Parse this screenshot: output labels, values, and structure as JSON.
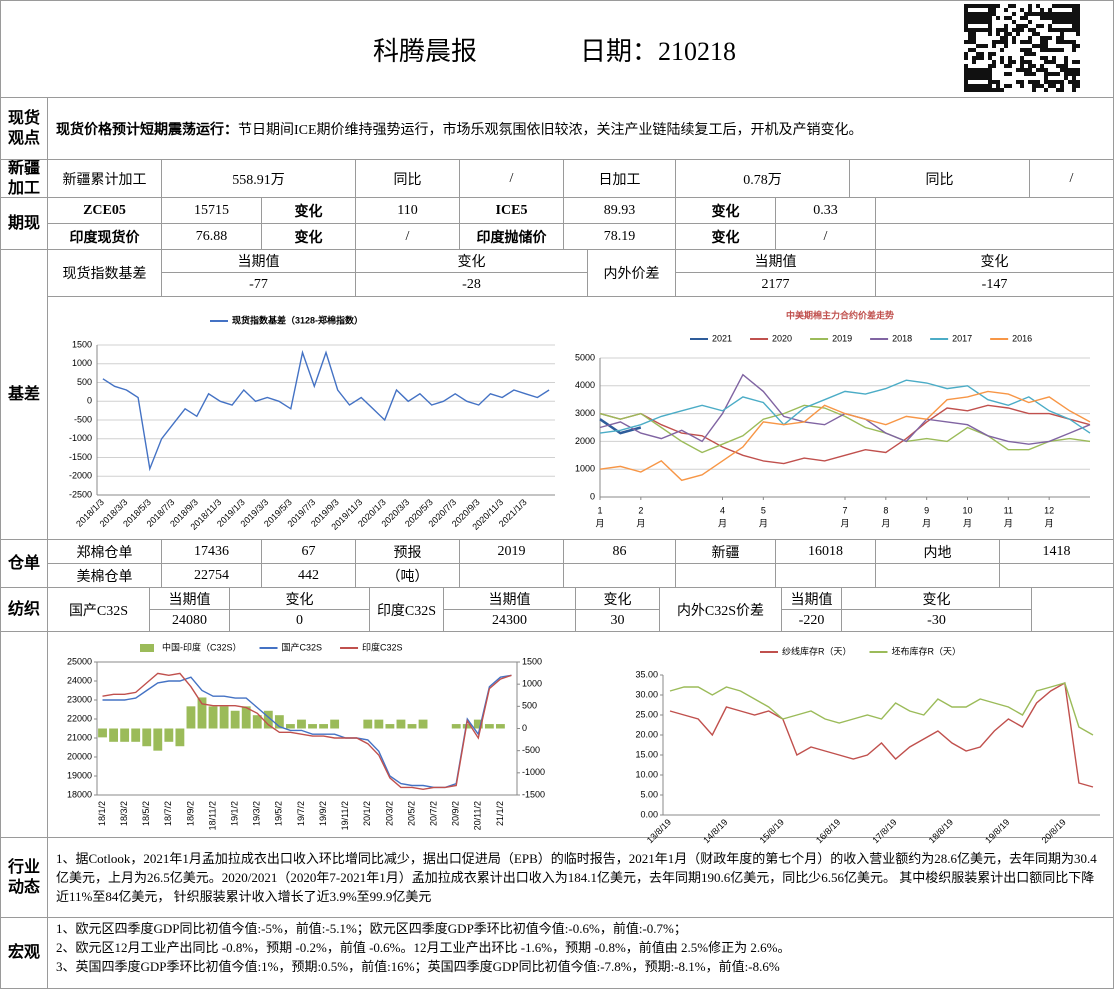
{
  "header": {
    "title": "科腾晨报",
    "date": "日期：210218"
  },
  "view": {
    "label": "现货观点",
    "bold": "现货价格预计短期震荡运行：",
    "text": "节日期间ICE期价维持强势运行，市场乐观氛围依旧较浓，关注产业链陆续复工后，开机及产销变化。"
  },
  "xinjiang": {
    "label": "新疆加工",
    "cells": [
      "新疆累计加工",
      "558.91万",
      "同比",
      "/",
      "日加工",
      "0.78万",
      "同比",
      "/"
    ]
  },
  "futures": {
    "label": "期现",
    "rows": [
      [
        "ZCE05",
        "15715",
        "变化",
        "110",
        "ICE5",
        "89.93",
        "变化",
        "0.33"
      ],
      [
        "印度现货价",
        "76.88",
        "变化",
        "/",
        "印度抛储价",
        "78.19",
        "变化",
        "/"
      ]
    ]
  },
  "basis": {
    "label": "基差",
    "headers": [
      "现货指数基差",
      "当期值",
      "变化",
      "内外价差",
      "当期值",
      "变化"
    ],
    "values": [
      "-77",
      "-28",
      "2177",
      "-147"
    ]
  },
  "warehouse": {
    "label": "仓单",
    "rows": [
      [
        "郑棉仓单",
        "17436",
        "67",
        "预报",
        "2019",
        "86",
        "新疆",
        "16018",
        "内地",
        "1418"
      ],
      [
        "美棉仓单",
        "22754",
        "442",
        "（吨）"
      ]
    ]
  },
  "textile": {
    "label": "纺织",
    "headers": [
      "国产C32S",
      "当期值",
      "变化",
      "印度C32S",
      "当期值",
      "变化",
      "内外C32S价差",
      "当期值",
      "变化"
    ],
    "values": [
      "24080",
      "0",
      "24300",
      "30",
      "-220",
      "-30"
    ]
  },
  "news": {
    "label": "行业动态",
    "text": "1、据Cotlook，2021年1月孟加拉成衣出口收入环比增同比减少，据出口促进局（EPB）的临时报告，2021年1月（财政年度的第七个月）的收入营业额约为28.6亿美元，去年同期为30.4亿美元，上月为26.5亿美元。2020/2021（2020年7-2021年1月）孟加拉成衣累计出口收入为184.1亿美元，去年同期190.6亿美元，同比少6.56亿美元。 其中梭织服装累计出口额同比下降近11%至84亿美元， 针织服装累计收入增长了近3.9%至99.9亿美元"
  },
  "macro": {
    "label": "宏观",
    "lines": [
      "1、欧元区四季度GDP同比初值今值:-5%，前值:-5.1%；欧元区四季度GDP季环比初值今值:-0.6%，前值:-0.7%；",
      "2、欧元区12月工业产出同比 -0.8%，预期 -0.2%，前值 -0.6%。12月工业产出环比 -1.6%，预期 -0.8%，前值由 2.5%修正为 2.6%。",
      "3、英国四季度GDP季环比初值今值:1%，预期:0.5%，前值:16%；英国四季度GDP同比初值今值:-7.8%，预期:-8.1%，前值:-8.6%"
    ]
  },
  "chart_data": [
    {
      "type": "line",
      "categories": [
        "2018/1/3",
        null,
        "2018/3/3",
        null,
        "2018/5/3",
        null,
        "2018/7/3",
        null,
        "2018/9/3",
        null,
        "2018/11/3",
        null,
        "2019/1/3",
        null,
        "2019/3/3",
        null,
        "2019/5/3",
        null,
        "2019/7/3",
        null,
        "2019/9/3",
        null,
        "2019/11/3",
        null,
        "2020/1/3",
        null,
        "2020/3/3",
        null,
        "2020/5/3",
        null,
        "2020/7/3",
        null,
        "2020/9/3",
        null,
        "2020/11/3",
        null,
        "2021/1/3",
        null,
        null
      ],
      "series": [
        {
          "name": "现货指数基差（3128-郑棉指数）",
          "color": "#4472c4",
          "values": [
            600,
            400,
            300,
            100,
            -1800,
            -1000,
            -600,
            -200,
            -400,
            200,
            0,
            -100,
            300,
            0,
            100,
            0,
            -200,
            1300,
            400,
            1300,
            300,
            -100,
            100,
            -200,
            -500,
            300,
            0,
            200,
            -100,
            0,
            200,
            0,
            -100,
            200,
            100,
            300,
            200,
            100,
            300
          ]
        }
      ],
      "ylim": [
        -2500,
        1500
      ],
      "yticks": [
        -2500,
        -2000,
        -1500,
        -1000,
        -500,
        0,
        500,
        1000,
        1500
      ],
      "grid": true
    },
    {
      "type": "line",
      "title": "中美期棉主力合约价差走势",
      "x": [
        1,
        1.5,
        2,
        2.5,
        3,
        3.5,
        4,
        4.5,
        5,
        5.5,
        6,
        6.5,
        7,
        7.5,
        8,
        8.5,
        9,
        9.5,
        10,
        10.5,
        11,
        11.5,
        12,
        12.5,
        13
      ],
      "xlim": [
        1,
        13
      ],
      "xticks": [
        1,
        2,
        4,
        5,
        7,
        8,
        9,
        10,
        11,
        12
      ],
      "x_unit": "月",
      "series": [
        {
          "name": "2021",
          "color": "#2e5c9a",
          "values": [
            2800,
            2300,
            2500,
            null,
            null,
            null,
            null,
            null,
            null,
            null,
            null,
            null,
            null,
            null,
            null,
            null,
            null,
            null,
            null,
            null,
            null,
            null,
            null,
            null,
            null
          ]
        },
        {
          "name": "2020",
          "color": "#c0504d",
          "values": [
            3000,
            2800,
            3000,
            2600,
            2300,
            2200,
            1800,
            1500,
            1300,
            1200,
            1400,
            1300,
            1500,
            1700,
            1600,
            2100,
            2700,
            3200,
            3100,
            3300,
            3200,
            3000,
            3000,
            2800,
            2600
          ]
        },
        {
          "name": "2019",
          "color": "#9bbb59",
          "values": [
            3000,
            2800,
            3000,
            2500,
            2000,
            1600,
            1900,
            2200,
            2800,
            3000,
            3300,
            3200,
            2900,
            2500,
            2300,
            2000,
            2100,
            2000,
            2500,
            2200,
            1700,
            1700,
            2000,
            2100,
            2000
          ]
        },
        {
          "name": "2018",
          "color": "#8064a2",
          "values": [
            2500,
            2700,
            2300,
            2100,
            2400,
            2000,
            3000,
            4400,
            3800,
            2900,
            2700,
            2600,
            3000,
            2800,
            2300,
            2000,
            2800,
            2700,
            2600,
            2200,
            2000,
            1900,
            2000,
            2300,
            2600
          ]
        },
        {
          "name": "2017",
          "color": "#4bacc6",
          "values": [
            2300,
            2400,
            2600,
            2900,
            3100,
            3300,
            3100,
            3600,
            3400,
            2600,
            3200,
            3500,
            3800,
            3700,
            3900,
            4200,
            4100,
            3900,
            4000,
            3500,
            3300,
            3600,
            3100,
            2800,
            2300
          ]
        },
        {
          "name": "2016",
          "color": "#f79646",
          "values": [
            1000,
            1100,
            900,
            1300,
            600,
            800,
            1300,
            1800,
            2700,
            2600,
            2700,
            3300,
            3000,
            2800,
            2600,
            2900,
            2800,
            3500,
            3600,
            3800,
            3700,
            3400,
            3600,
            3100,
            2700
          ]
        }
      ],
      "ylim": [
        0,
        5000
      ],
      "yticks": [
        0,
        1000,
        2000,
        3000,
        4000,
        5000
      ],
      "grid": true
    },
    {
      "type": "combo",
      "categories": [
        "18/1/2",
        null,
        "18/3/2",
        null,
        "18/5/2",
        null,
        "18/7/2",
        null,
        "18/9/2",
        null,
        "18/11/2",
        null,
        "19/1/2",
        null,
        "19/3/2",
        null,
        "19/5/2",
        null,
        "19/7/2",
        null,
        "19/9/2",
        null,
        "19/11/2",
        null,
        "20/1/2",
        null,
        "20/3/2",
        null,
        "20/5/2",
        null,
        "20/7/2",
        null,
        "20/9/2",
        null,
        "20/11/2",
        null,
        "21/1/2",
        null
      ],
      "series": [
        {
          "name": "中国-印度（C32S）",
          "type": "bar",
          "axis": "y2",
          "color": "#9bbb59",
          "values": [
            -200,
            -300,
            -300,
            -300,
            -400,
            -500,
            -300,
            -400,
            500,
            700,
            500,
            500,
            400,
            500,
            300,
            400,
            300,
            100,
            200,
            100,
            100,
            200,
            0,
            0,
            200,
            200,
            100,
            200,
            100,
            200,
            0,
            0,
            100,
            100,
            200,
            100,
            100,
            0
          ]
        },
        {
          "name": "国产C32S",
          "color": "#4472c4",
          "values": [
            23000,
            23000,
            23000,
            23100,
            23500,
            23900,
            24000,
            24000,
            24200,
            23500,
            23200,
            23200,
            23100,
            23100,
            22600,
            22100,
            21600,
            21400,
            21400,
            21200,
            21200,
            21200,
            21000,
            21000,
            20900,
            20300,
            19000,
            18600,
            18500,
            18500,
            18400,
            18400,
            18600,
            22000,
            21200,
            23700,
            24200,
            24300
          ]
        },
        {
          "name": "印度C32S",
          "color": "#c0504d",
          "values": [
            23200,
            23300,
            23300,
            23400,
            23900,
            24400,
            24300,
            24400,
            23700,
            22800,
            22700,
            22700,
            22700,
            22600,
            22300,
            21700,
            21300,
            21300,
            21200,
            21100,
            21100,
            21000,
            21000,
            21000,
            20700,
            20100,
            18900,
            18400,
            18400,
            18300,
            18400,
            18400,
            18500,
            21900,
            21000,
            23600,
            24100,
            24300
          ]
        }
      ],
      "ylim": [
        18000,
        25000
      ],
      "yticks": [
        18000,
        19000,
        20000,
        21000,
        22000,
        23000,
        24000,
        25000
      ],
      "y2lim": [
        -1500,
        1500
      ],
      "y2ticks": [
        -1500,
        -1000,
        -500,
        0,
        500,
        1000,
        1500
      ],
      "grid": false
    },
    {
      "type": "line",
      "categories": [
        "13/8/19",
        null,
        null,
        null,
        "14/8/19",
        null,
        null,
        null,
        "15/8/19",
        null,
        null,
        null,
        "16/8/19",
        null,
        null,
        null,
        "17/8/19",
        null,
        null,
        null,
        "18/8/19",
        null,
        null,
        null,
        "19/8/19",
        null,
        null,
        null,
        "20/8/19",
        null,
        null
      ],
      "series": [
        {
          "name": "纱线库存R（天）",
          "color": "#c0504d",
          "values": [
            26,
            25,
            24,
            20,
            27,
            26,
            25,
            26,
            24,
            15,
            17,
            16,
            15,
            14,
            15,
            18,
            14,
            17,
            19,
            21,
            18,
            16,
            17,
            21,
            24,
            22,
            28,
            31,
            33,
            8,
            7
          ]
        },
        {
          "name": "坯布库存R（天）",
          "color": "#9bbb59",
          "values": [
            31,
            32,
            32,
            30,
            32,
            31,
            29,
            27,
            24,
            25,
            26,
            24,
            23,
            24,
            25,
            24,
            28,
            26,
            25,
            29,
            27,
            27,
            29,
            28,
            27,
            25,
            31,
            32,
            33,
            22,
            20
          ]
        }
      ],
      "ylim": [
        0,
        35
      ],
      "yticks": [
        {
          "value": 0,
          "label": "0.00"
        },
        {
          "value": 5,
          "label": "5.00"
        },
        {
          "value": 10,
          "label": "10.00"
        },
        {
          "value": 15,
          "label": "15.00"
        },
        {
          "value": 20,
          "label": "20.00"
        },
        {
          "value": 25,
          "label": "25.00"
        },
        {
          "value": 30,
          "label": "30.00"
        },
        {
          "value": 35,
          "label": "35.00"
        }
      ],
      "grid": false
    }
  ]
}
